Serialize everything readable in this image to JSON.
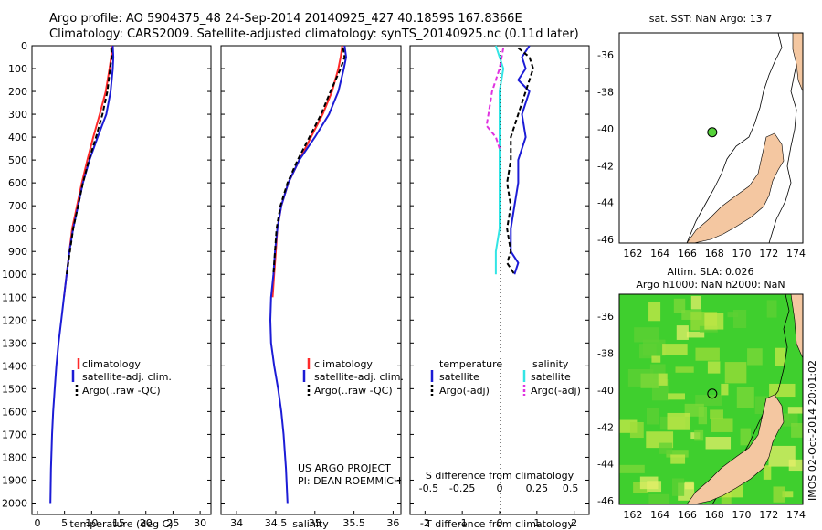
{
  "header": {
    "title_line1": "Argo profile: AO 5904375_48 24-Sep-2014 20140925_427 40.1859S 167.8366E",
    "title_line2": "Climatology: CARS2009. Satellite-adjusted climatology: synTS_20140925.nc (0.11d later)"
  },
  "colors": {
    "climatology": "#ff2a2a",
    "satellite": "#1c1cd6",
    "argo": "#000000",
    "sal_satellite": "#33e5e5",
    "sal_argo": "#e033e0",
    "land": "#f4c7a1",
    "ocean_green": "#3fcf2e",
    "float_marker": "#55d23a"
  },
  "chart_data": [
    {
      "id": "temperature",
      "type": "line",
      "title": "",
      "xlabel": "temperature (deg C)",
      "ylabel": "",
      "xlim": [
        -1,
        32
      ],
      "ylim": [
        2050,
        0
      ],
      "xticks": [
        0,
        5,
        10,
        15,
        20,
        25,
        30
      ],
      "yticks": [
        0,
        100,
        200,
        300,
        400,
        500,
        600,
        700,
        800,
        900,
        1000,
        1100,
        1200,
        1300,
        1400,
        1500,
        1600,
        1700,
        1800,
        1900,
        2000
      ],
      "legend": [
        "climatology",
        "satellite-adj. clim.",
        "Argo(..raw -QC)"
      ],
      "series": [
        {
          "name": "climatology",
          "color_key": "climatology",
          "dash": false,
          "x": [
            13.8,
            13.6,
            13.3,
            12.6,
            11.5,
            10.3,
            9.2,
            8.2,
            7.3,
            6.4,
            5.9,
            5.4,
            4.9
          ],
          "y": [
            0,
            50,
            100,
            200,
            300,
            400,
            500,
            600,
            700,
            800,
            900,
            1000,
            1100
          ]
        },
        {
          "name": "satellite-adj. clim.",
          "color_key": "satellite",
          "dash": false,
          "x": [
            13.9,
            14.0,
            13.9,
            13.5,
            12.7,
            11.1,
            9.6,
            8.4,
            7.5,
            6.6,
            5.9,
            5.4,
            4.9,
            4.4,
            3.9,
            3.5,
            3.2,
            2.9,
            2.7,
            2.5,
            2.4
          ],
          "y": [
            0,
            50,
            100,
            200,
            300,
            400,
            500,
            600,
            700,
            800,
            900,
            1000,
            1100,
            1200,
            1300,
            1400,
            1500,
            1600,
            1700,
            1850,
            2000
          ]
        },
        {
          "name": "Argo(..raw -QC)",
          "color_key": "argo",
          "dash": true,
          "x": [
            13.6,
            13.7,
            13.4,
            12.9,
            12.0,
            10.8,
            9.5,
            8.4,
            7.5,
            6.6,
            6.0,
            5.4
          ],
          "y": [
            10,
            50,
            100,
            200,
            300,
            400,
            500,
            600,
            700,
            800,
            900,
            1000
          ]
        }
      ]
    },
    {
      "id": "salinity",
      "type": "line",
      "xlabel": "salinity",
      "xlim": [
        33.8,
        36.1
      ],
      "ylim": [
        2050,
        0
      ],
      "xticks": [
        34,
        34.5,
        35,
        35.5,
        36
      ],
      "legend": [
        "climatology",
        "satellite-adj. clim.",
        "Argo(..raw -QC)"
      ],
      "series": [
        {
          "name": "climatology",
          "color_key": "climatology",
          "dash": false,
          "x": [
            35.35,
            35.33,
            35.3,
            35.22,
            35.1,
            34.95,
            34.8,
            34.66,
            34.57,
            34.52,
            34.5,
            34.48,
            34.46
          ],
          "y": [
            0,
            50,
            100,
            200,
            300,
            400,
            500,
            600,
            700,
            800,
            900,
            1000,
            1100
          ]
        },
        {
          "name": "satellite-adj. clim.",
          "color_key": "satellite",
          "dash": false,
          "x": [
            35.38,
            35.4,
            35.37,
            35.3,
            35.18,
            35.0,
            34.8,
            34.66,
            34.57,
            34.52,
            34.49,
            34.47,
            34.44,
            34.43,
            34.44,
            34.48,
            34.53,
            34.57,
            34.6,
            34.63,
            34.65
          ],
          "y": [
            0,
            50,
            100,
            200,
            300,
            400,
            500,
            600,
            700,
            800,
            900,
            1000,
            1100,
            1200,
            1300,
            1400,
            1500,
            1600,
            1700,
            1850,
            2000
          ]
        },
        {
          "name": "Argo(..raw -QC)",
          "color_key": "argo",
          "dash": true,
          "x": [
            35.36,
            35.38,
            35.33,
            35.2,
            35.08,
            34.93,
            34.78,
            34.65,
            34.56,
            34.51,
            34.49,
            34.47
          ],
          "y": [
            10,
            50,
            100,
            200,
            300,
            400,
            500,
            600,
            700,
            800,
            900,
            1000
          ]
        }
      ],
      "credits": [
        "US ARGO PROJECT",
        "PI: DEAN ROEMMICH"
      ]
    },
    {
      "id": "difference",
      "type": "line",
      "xlabel": "T difference from climatology",
      "xlabel_top": "S difference from climatology",
      "xlim": [
        -2.4,
        2.4
      ],
      "ylim": [
        2050,
        0
      ],
      "xticks": [
        -2,
        -1,
        0,
        1,
        2
      ],
      "xticks_top": [
        "-0.5",
        "-0.25",
        "0",
        "0.25",
        "0.5"
      ],
      "legend_headers": [
        "temperature",
        "salinity"
      ],
      "legend": [
        "satellite",
        "Argo(-adj)",
        "satellite",
        "Argo(-adj)"
      ],
      "series": [
        {
          "name": "temperature satellite",
          "color_key": "satellite",
          "dash": false,
          "x": [
            0.8,
            0.6,
            0.7,
            0.5,
            0.8,
            0.6,
            0.7,
            0.5,
            0.5,
            0.4,
            0.3,
            0.3,
            0.3,
            0.5,
            0.4
          ],
          "y": [
            0,
            50,
            100,
            150,
            200,
            300,
            400,
            500,
            600,
            700,
            800,
            850,
            900,
            950,
            1000
          ]
        },
        {
          "name": "temperature Argo(-adj)",
          "color_key": "argo",
          "dash": true,
          "x": [
            0.5,
            0.8,
            0.9,
            0.7,
            0.5,
            0.3,
            0.3,
            0.2,
            0.3,
            0.2,
            0.3,
            0.2,
            0.4
          ],
          "y": [
            10,
            50,
            100,
            200,
            300,
            400,
            500,
            600,
            700,
            800,
            900,
            950,
            1000
          ]
        },
        {
          "name": "salinity satellite",
          "color_key": "sal_satellite",
          "dash": false,
          "x": [
            -0.1,
            0.0,
            0.1,
            0.0,
            0.0,
            0.0,
            0.0,
            0.0,
            0.0,
            0.0,
            -0.1,
            -0.1
          ],
          "y": [
            0,
            50,
            100,
            200,
            300,
            400,
            500,
            600,
            700,
            800,
            900,
            1000
          ]
        },
        {
          "name": "salinity Argo(-adj)",
          "color_key": "sal_argo",
          "dash": true,
          "x": [
            0.1,
            0.0,
            -0.2,
            -0.3,
            -0.35,
            -0.1,
            0.0
          ],
          "y": [
            10,
            100,
            200,
            300,
            350,
            400,
            450
          ]
        }
      ]
    },
    {
      "id": "sst-map",
      "type": "map",
      "title": "sat. SST: NaN Argo: 13.7",
      "xlim": [
        161,
        174.5
      ],
      "ylim": [
        -46.2,
        -34.8
      ],
      "xticks": [
        162,
        164,
        166,
        168,
        170,
        172,
        174
      ],
      "yticks": [
        -36,
        -38,
        -40,
        -42,
        -44,
        -46
      ],
      "float_position": [
        167.84,
        -40.19
      ]
    },
    {
      "id": "sla-map",
      "type": "map",
      "title_line1": "Altim. SLA: 0.026",
      "title_line2": "Argo h1000: NaN h2000: NaN",
      "xlim": [
        161,
        174.5
      ],
      "ylim": [
        -46.2,
        -34.8
      ],
      "xticks": [
        162,
        164,
        166,
        168,
        170,
        172,
        174
      ],
      "yticks": [
        -36,
        -38,
        -40,
        -42,
        -44,
        -46
      ],
      "float_position": [
        167.84,
        -40.19
      ]
    }
  ],
  "footer": {
    "imos_stamp": "IMOS 02-Oct-2014 20:01:02"
  }
}
